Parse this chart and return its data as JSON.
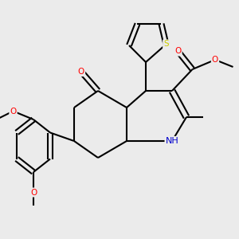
{
  "background_color": "#ebebeb",
  "bond_color": "#000000",
  "atom_colors": {
    "N": "#0000cc",
    "O": "#ff0000",
    "S": "#cccc00",
    "C": "#000000"
  },
  "bond_width": 1.5,
  "font_size": 7.5
}
